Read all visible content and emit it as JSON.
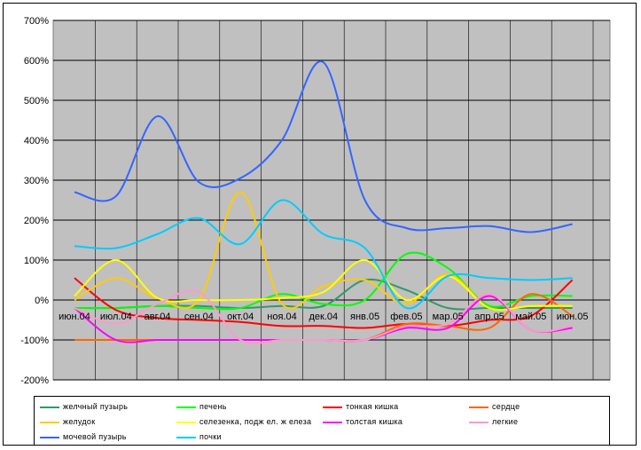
{
  "chart_data": {
    "type": "line",
    "title": "",
    "xlabel": "",
    "ylabel": "",
    "ylim": [
      -200,
      700
    ],
    "y_ticks": [
      "-200%",
      "-100%",
      "0%",
      "100%",
      "200%",
      "300%",
      "400%",
      "500%",
      "600%",
      "700%"
    ],
    "categories": [
      "июн.04",
      "июл.04",
      "авг.04",
      "сен.04",
      "окт.04",
      "ноя.04",
      "дек.04",
      "янв.05",
      "фев.05",
      "мар.05",
      "апр.05",
      "май.05",
      "июн.05"
    ],
    "grid": "horizontal",
    "plot_background": "#c0c0c0",
    "legend_position": "bottom",
    "series": [
      {
        "name": "желчный пузырь",
        "color": "#339966",
        "values": [
          -20,
          -20,
          -15,
          -15,
          -20,
          -15,
          -15,
          50,
          25,
          -20,
          -20,
          -20,
          -20
        ]
      },
      {
        "name": "печень",
        "color": "#00ff00",
        "values": [
          -20,
          -20,
          -15,
          -20,
          -20,
          15,
          -10,
          0,
          115,
          80,
          -15,
          10,
          10
        ]
      },
      {
        "name": "тонкая кишка",
        "color": "#ff0000",
        "values": [
          55,
          -25,
          -45,
          -50,
          -55,
          -65,
          -65,
          -70,
          -60,
          -65,
          -50,
          -40,
          50
        ]
      },
      {
        "name": "сердце",
        "color": "#ff6600",
        "values": [
          -100,
          -100,
          -100,
          -100,
          -100,
          -100,
          -100,
          -100,
          -60,
          -65,
          -70,
          15,
          -40
        ]
      },
      {
        "name": "желудок",
        "color": "#ffcc00",
        "values": [
          0,
          55,
          5,
          0,
          270,
          -10,
          35,
          50,
          -10,
          65,
          -20,
          -15,
          -15
        ]
      },
      {
        "name": "селезенка, подж ел. ж елеза",
        "color": "#ffff00",
        "values": [
          10,
          100,
          5,
          0,
          0,
          5,
          20,
          100,
          0,
          60,
          -20,
          -15,
          -15
        ]
      },
      {
        "name": "толстая кишка",
        "color": "#ff00ff",
        "values": [
          -20,
          -100,
          -100,
          -100,
          -100,
          -100,
          -100,
          -100,
          -70,
          -70,
          10,
          -75,
          -70
        ]
      },
      {
        "name": "легкие",
        "color": "#ff99cc",
        "values": [
          -20,
          -60,
          -10,
          20,
          -100,
          -100,
          -100,
          -100,
          -65,
          -60,
          15,
          -75,
          -65
        ]
      },
      {
        "name": "мочевой пузырь",
        "color": "#3366ff",
        "values": [
          270,
          260,
          460,
          295,
          305,
          400,
          595,
          250,
          180,
          180,
          185,
          170,
          190
        ]
      },
      {
        "name": "почки",
        "color": "#00ccff",
        "values": [
          135,
          130,
          165,
          205,
          140,
          250,
          165,
          130,
          -20,
          60,
          55,
          50,
          55
        ]
      }
    ]
  }
}
